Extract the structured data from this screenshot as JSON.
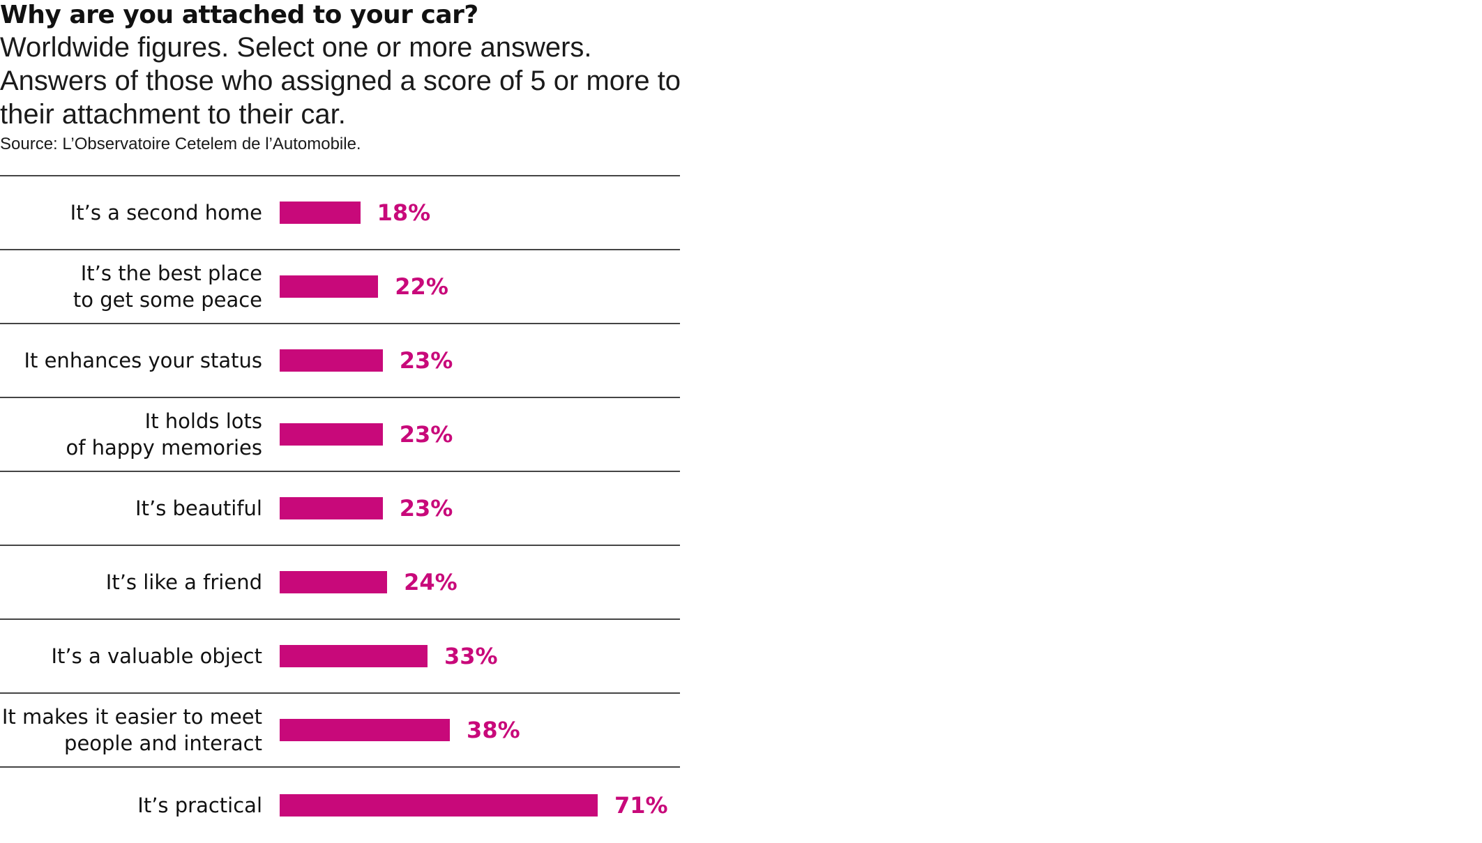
{
  "colors": {
    "bar": "#c8097a",
    "value_text": "#c8097a",
    "rule": "#444444",
    "text": "#111111"
  },
  "chart_data": {
    "type": "bar",
    "orientation": "horizontal",
    "title": "Why are you attached to your car?",
    "subtitle_lines": [
      "Worldwide figures. Select one or more answers.",
      "Answers of those who assigned a score of 5 or more to",
      "their attachment to their car."
    ],
    "source": "Source: L’Observatoire Cetelem de l’Automobile.",
    "categories": [
      [
        "It’s a second home"
      ],
      [
        "It’s the best place",
        "to get some peace"
      ],
      [
        "It enhances your status"
      ],
      [
        "It holds lots",
        "of happy memories"
      ],
      [
        "It’s beautiful"
      ],
      [
        "It’s like a friend"
      ],
      [
        "It’s a valuable object"
      ],
      [
        "It makes it easier to meet",
        "people and interact"
      ],
      [
        "It’s practical"
      ]
    ],
    "values": [
      18,
      22,
      23,
      23,
      23,
      24,
      33,
      38,
      71
    ],
    "value_labels": [
      "18%",
      "22%",
      "23%",
      "23%",
      "23%",
      "24%",
      "33%",
      "38%",
      "71%"
    ],
    "unit": "%",
    "xlim": [
      0,
      71
    ],
    "grid": false,
    "legend": "none"
  }
}
